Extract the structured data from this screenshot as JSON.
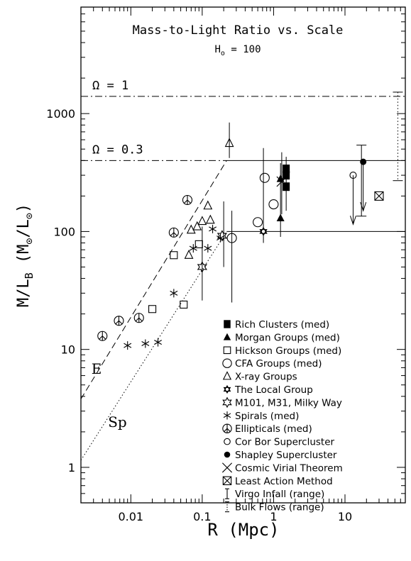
{
  "chart_data": {
    "type": "scatter",
    "title": "Mass-to-Light Ratio vs. Scale",
    "subtitle_main": "H",
    "subtitle_sub": "o",
    "subtitle_rest": " = 100",
    "xlabel": "R (Mpc)",
    "ylabel_main": "M/L",
    "ylabel_sub": "B",
    "ylabel_units": "(M",
    "ylabel_units_sub1": "⊙",
    "ylabel_units_mid": "/L",
    "ylabel_units_sub2": "⊙",
    "ylabel_units_end": ")",
    "xscale": "log",
    "yscale": "log",
    "xlim": [
      0.002,
      70
    ],
    "ylim": [
      0.5,
      8000
    ],
    "xticks": [
      {
        "value": 0.01,
        "label": "0.01"
      },
      {
        "value": 0.1,
        "label": "0.1"
      },
      {
        "value": 1,
        "label": "1"
      },
      {
        "value": 10,
        "label": "10"
      }
    ],
    "yticks": [
      {
        "value": 1,
        "label": "1"
      },
      {
        "value": 10,
        "label": "10"
      },
      {
        "value": 100,
        "label": "100"
      },
      {
        "value": 1000,
        "label": "1000"
      }
    ],
    "omega_lines": [
      {
        "label": "Ω = 1",
        "y": 1400,
        "style": "dashdot"
      },
      {
        "label": "Ω = 0.3",
        "y": 400,
        "style": "dashdot"
      }
    ],
    "line_labels": [
      {
        "label": "E",
        "x": 0.0028,
        "y": 6.2
      },
      {
        "label": "Sp",
        "x": 0.0048,
        "y": 2.2
      }
    ],
    "trend_lines": [
      {
        "name": "ellipticals-trend",
        "style": "dashed",
        "x": [
          0.002,
          0.22
        ],
        "y": [
          3.8,
          400
        ]
      },
      {
        "name": "spirals-trend",
        "style": "dotted",
        "x": [
          0.002,
          0.22
        ],
        "y": [
          1.15,
          100
        ]
      }
    ],
    "reference_lines": [
      {
        "name": "omega-03-solid-line",
        "x": [
          0.22,
          70
        ],
        "y": [
          400,
          400
        ]
      },
      {
        "name": "m-l-100-solid-line",
        "x": [
          0.22,
          70
        ],
        "y": [
          100,
          100
        ]
      }
    ],
    "series": [
      {
        "name": "Rich Clusters (med)",
        "marker": "filled-square",
        "points": [
          [
            1.5,
            240
          ],
          [
            1.5,
            300
          ],
          [
            1.5,
            340
          ]
        ]
      },
      {
        "name": "Morgan Groups (med)",
        "marker": "filled-triangle",
        "points": [
          [
            1.25,
            280
          ],
          [
            1.25,
            130
          ]
        ]
      },
      {
        "name": "Hickson Groups (med)",
        "marker": "open-square",
        "points": [
          [
            0.04,
            63
          ],
          [
            0.055,
            24
          ],
          [
            0.09,
            78
          ],
          [
            0.02,
            22
          ]
        ]
      },
      {
        "name": "CFA Groups (med)",
        "marker": "open-circle",
        "points": [
          [
            0.26,
            88
          ],
          [
            0.6,
            120
          ],
          [
            0.75,
            285
          ],
          [
            1.0,
            170
          ]
        ]
      },
      {
        "name": "X-ray Groups",
        "marker": "open-triangle",
        "points": [
          [
            0.065,
            63
          ],
          [
            0.07,
            103
          ],
          [
            0.085,
            110
          ],
          [
            0.1,
            122
          ],
          [
            0.12,
            165
          ],
          [
            0.13,
            125
          ],
          [
            0.24,
            560
          ]
        ]
      },
      {
        "name": "The Local Group",
        "marker": "star-of-david",
        "points": [
          [
            0.72,
            100
          ]
        ]
      },
      {
        "name": "M101, M31, Milky Way",
        "marker": "open-star",
        "points": [
          [
            0.1,
            50
          ],
          [
            0.19,
            92
          ]
        ]
      },
      {
        "name": "Spirals (med)",
        "marker": "asterisk",
        "points": [
          [
            0.009,
            10.8
          ],
          [
            0.016,
            11.2
          ],
          [
            0.024,
            11.5
          ],
          [
            0.04,
            30
          ],
          [
            0.075,
            72
          ],
          [
            0.12,
            72
          ],
          [
            0.14,
            105
          ],
          [
            0.18,
            88
          ]
        ]
      },
      {
        "name": "Ellipticals (med)",
        "marker": "peace",
        "points": [
          [
            0.004,
            13
          ],
          [
            0.0068,
            17.5
          ],
          [
            0.013,
            18.5
          ],
          [
            0.04,
            98
          ],
          [
            0.062,
            185
          ]
        ]
      },
      {
        "name": "Cor Bor Supercluster",
        "marker": "small-open-circle",
        "points": [
          [
            13,
            300
          ]
        ]
      },
      {
        "name": "Shapley Supercluster",
        "marker": "filled-circle",
        "points": [
          [
            18,
            390
          ]
        ]
      },
      {
        "name": "Cosmic Virial Theorem",
        "marker": "x-cross",
        "points": [
          [
            1.3,
            265
          ]
        ]
      },
      {
        "name": "Least Action Method",
        "marker": "boxed-x",
        "points": [
          [
            30,
            200
          ]
        ]
      },
      {
        "name": "Virgo Infall (range)",
        "marker": "errorbar",
        "points": [
          [
            17,
            540,
            135
          ]
        ]
      },
      {
        "name": "Bulk Flows (range)",
        "marker": "dotted-range",
        "points": [
          [
            55,
            1520,
            270
          ]
        ]
      }
    ],
    "error_bars": [
      {
        "x": 0.24,
        "y_high": 840,
        "y_low": 420
      },
      {
        "x": 0.1,
        "y_high": 110,
        "y_low": 26
      },
      {
        "x": 0.2,
        "y_high": 180,
        "y_low": 50
      },
      {
        "x": 0.26,
        "y_high": 150,
        "y_low": 25
      },
      {
        "x": 0.72,
        "y_high": 510,
        "y_low": 80
      },
      {
        "x": 1.25,
        "y_high": 380,
        "y_low": 90
      },
      {
        "x": 1.3,
        "y_high": 470,
        "y_low": 140
      },
      {
        "x": 1.5,
        "y_high": 430,
        "y_low": 150
      }
    ],
    "upper_limit_arrows": [
      {
        "x": 13,
        "y_from": 300,
        "y_to": 115
      },
      {
        "x": 18,
        "y_from": 390,
        "y_to": 150
      }
    ],
    "legend_position": "bottom-right",
    "grid": false
  }
}
